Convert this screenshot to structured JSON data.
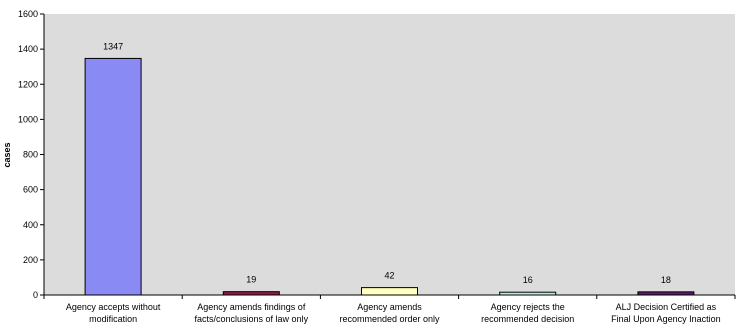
{
  "chart_data": {
    "type": "bar",
    "title": "",
    "xlabel": "",
    "ylabel": "cases",
    "ylim": [
      0,
      1600
    ],
    "yticks": [
      0,
      200,
      400,
      600,
      800,
      1000,
      1200,
      1400,
      1600
    ],
    "grid": false,
    "legend": "none",
    "plot_background": "#dcdcdc",
    "categories": [
      [
        "Agency accepts without",
        "modification"
      ],
      [
        "Agency amends findings of",
        "facts/conclusions of law only"
      ],
      [
        "Agency amends",
        "recommended order only"
      ],
      [
        "Agency rejects the",
        "recommended decision"
      ],
      [
        "ALJ Decision Certified as",
        "Final Upon Agency Inaction"
      ]
    ],
    "values": [
      1347,
      19,
      42,
      16,
      18
    ],
    "data_labels": [
      "1347",
      "19",
      "42",
      "16",
      "18"
    ],
    "bar_colors": [
      "#8a8af5",
      "#8b1a4a",
      "#ffffc0",
      "#bfe8e8",
      "#5a1a6a"
    ]
  }
}
